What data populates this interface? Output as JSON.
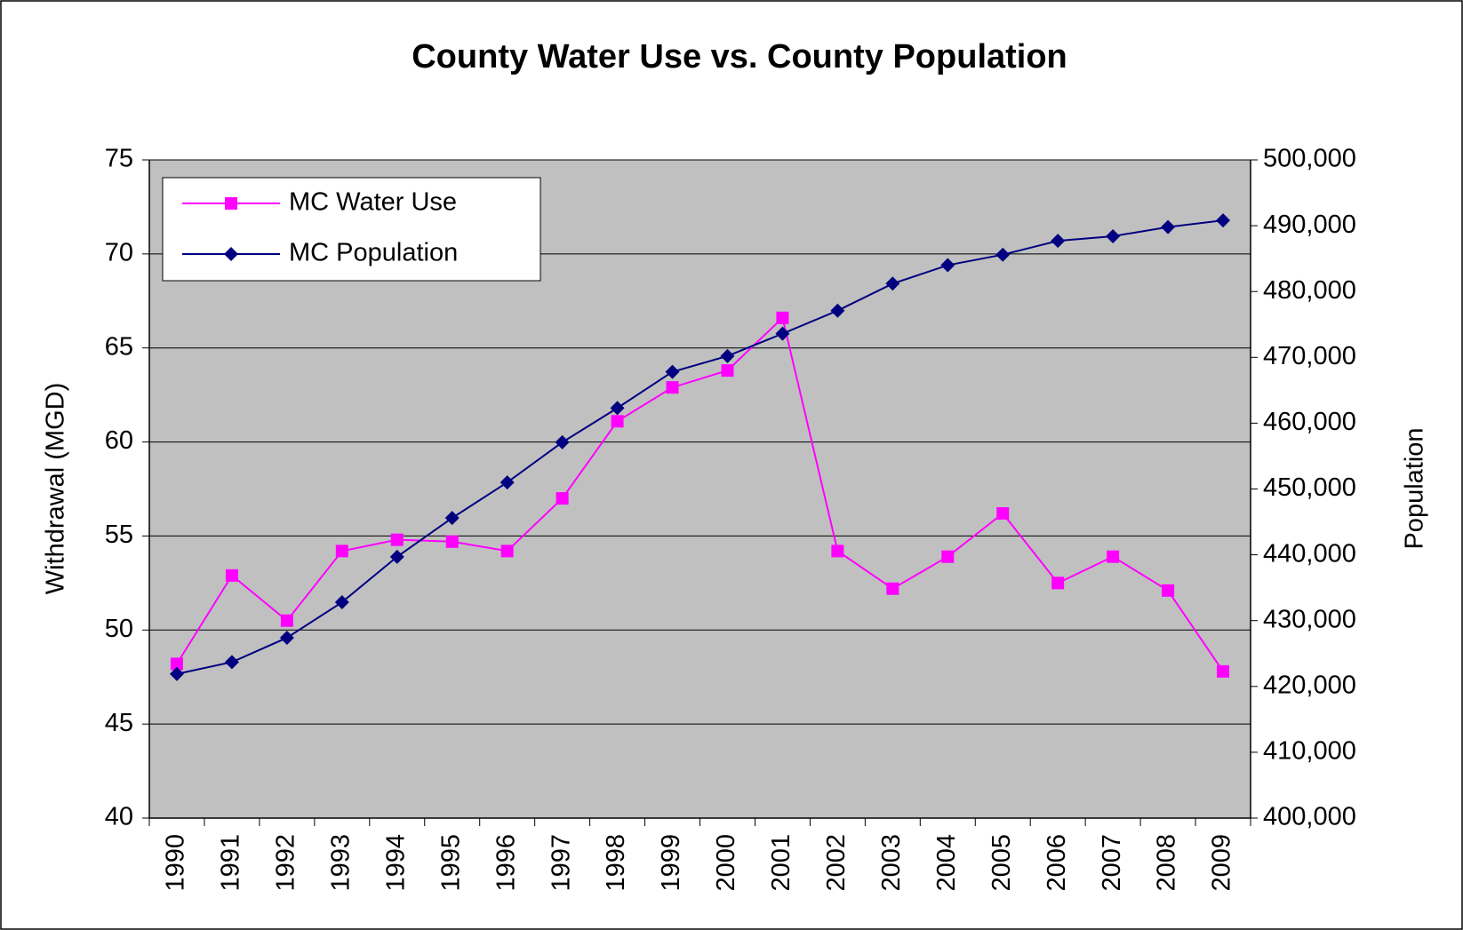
{
  "chart_data": {
    "type": "line",
    "title": "County Water Use vs. County Population",
    "y_label": "Withdrawal (MGD)",
    "y2_label": "Population",
    "categories": [
      "1990",
      "1991",
      "1992",
      "1993",
      "1994",
      "1995",
      "1996",
      "1997",
      "1998",
      "1999",
      "2000",
      "2001",
      "2002",
      "2003",
      "2004",
      "2005",
      "2006",
      "2007",
      "2008",
      "2009"
    ],
    "series": [
      {
        "name": "MC Water Use",
        "color": "#ff00ff",
        "marker": "square",
        "values": [
          48.2,
          52.9,
          50.5,
          54.2,
          54.8,
          54.7,
          54.2,
          57.0,
          61.1,
          62.9,
          63.8,
          66.6,
          54.2,
          52.2,
          53.9,
          56.2,
          52.5,
          53.9,
          52.1,
          47.8
        ]
      },
      {
        "name": "MC Population",
        "color": "#000080",
        "marker": "diamond",
        "axis": "y2",
        "values": [
          421900,
          423700,
          427400,
          432800,
          439700,
          445600,
          451000,
          457100,
          462300,
          467800,
          470200,
          473600,
          477100,
          481200,
          484000,
          485600,
          487700,
          488400,
          489800,
          490800
        ]
      }
    ],
    "ylim": [
      40,
      75
    ],
    "yticks": [
      40,
      45,
      50,
      55,
      60,
      65,
      70,
      75
    ],
    "y2lim": [
      400000,
      500000
    ],
    "y2ticks": [
      {
        "value": 400000,
        "label": "400,000"
      },
      {
        "value": 410000,
        "label": "410,000"
      },
      {
        "value": 420000,
        "label": "420,000"
      },
      {
        "value": 430000,
        "label": "430,000"
      },
      {
        "value": 440000,
        "label": "440,000"
      },
      {
        "value": 450000,
        "label": "450,000"
      },
      {
        "value": 460000,
        "label": "460,000"
      },
      {
        "value": 470000,
        "label": "470,000"
      },
      {
        "value": 480000,
        "label": "480,000"
      },
      {
        "value": 490000,
        "label": "490,000"
      },
      {
        "value": 500000,
        "label": "500,000"
      }
    ],
    "grid": true,
    "legend": "upper left",
    "plot_background": "#c0c0c0"
  }
}
